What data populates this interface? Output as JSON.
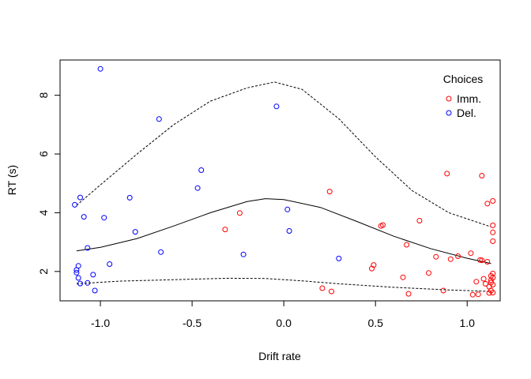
{
  "chart_data": {
    "type": "scatter",
    "title": "",
    "xlabel": "Drift rate",
    "ylabel": "RT (s)",
    "xlim": [
      -1.22,
      1.18
    ],
    "ylim": [
      1.0,
      9.2
    ],
    "x_ticks": [
      -1.0,
      -0.5,
      0.0,
      0.5,
      1.0
    ],
    "x_tick_labels": [
      "-1.0",
      "-0.5",
      "0.0",
      "0.5",
      "1.0"
    ],
    "y_ticks": [
      2,
      4,
      6,
      8
    ],
    "y_tick_labels": [
      "2",
      "4",
      "6",
      "8"
    ],
    "grid": false,
    "legend": {
      "title": "Choices",
      "position": "top-right",
      "entries": [
        {
          "label": "Imm.",
          "color": "#ff0000"
        },
        {
          "label": "Del.",
          "color": "#0000ff"
        }
      ]
    },
    "series": [
      {
        "name": "Imm.",
        "color": "#ff0000",
        "points": [
          [
            -0.32,
            3.43
          ],
          [
            -0.24,
            3.99
          ],
          [
            0.21,
            1.43
          ],
          [
            0.25,
            4.72
          ],
          [
            0.26,
            1.32
          ],
          [
            0.48,
            2.1
          ],
          [
            0.49,
            2.22
          ],
          [
            0.53,
            3.55
          ],
          [
            0.54,
            3.58
          ],
          [
            0.65,
            1.8
          ],
          [
            0.67,
            2.91
          ],
          [
            0.68,
            1.24
          ],
          [
            0.74,
            3.73
          ],
          [
            0.79,
            1.95
          ],
          [
            0.83,
            2.5
          ],
          [
            0.87,
            1.35
          ],
          [
            0.89,
            5.33
          ],
          [
            0.91,
            2.42
          ],
          [
            0.95,
            2.52
          ],
          [
            1.02,
            2.62
          ],
          [
            1.03,
            1.21
          ],
          [
            1.05,
            1.65
          ],
          [
            1.06,
            1.22
          ],
          [
            1.07,
            2.39
          ],
          [
            1.08,
            2.38
          ],
          [
            1.08,
            5.26
          ],
          [
            1.09,
            1.75
          ],
          [
            1.1,
            1.58
          ],
          [
            1.11,
            4.31
          ],
          [
            1.11,
            2.33
          ],
          [
            1.12,
            1.27
          ],
          [
            1.12,
            1.48
          ],
          [
            1.13,
            1.7
          ],
          [
            1.13,
            1.62
          ],
          [
            1.13,
            1.35
          ],
          [
            1.13,
            1.85
          ],
          [
            1.14,
            4.4
          ],
          [
            1.14,
            1.55
          ],
          [
            1.14,
            3.57
          ],
          [
            1.14,
            3.03
          ],
          [
            1.14,
            3.33
          ],
          [
            1.14,
            1.93
          ],
          [
            1.14,
            1.28
          ],
          [
            1.14,
            1.79
          ]
        ]
      },
      {
        "name": "Del.",
        "color": "#0000ff",
        "points": [
          [
            -1.14,
            4.27
          ],
          [
            -1.13,
            1.96
          ],
          [
            -1.13,
            2.05
          ],
          [
            -1.12,
            1.78
          ],
          [
            -1.12,
            2.19
          ],
          [
            -1.11,
            1.59
          ],
          [
            -1.11,
            4.52
          ],
          [
            -1.09,
            3.86
          ],
          [
            -1.07,
            1.61
          ],
          [
            -1.07,
            2.8
          ],
          [
            -1.04,
            1.89
          ],
          [
            -1.03,
            1.35
          ],
          [
            -1.0,
            8.9
          ],
          [
            -0.98,
            3.83
          ],
          [
            -0.95,
            2.25
          ],
          [
            -0.84,
            4.51
          ],
          [
            -0.81,
            3.35
          ],
          [
            -0.68,
            7.19
          ],
          [
            -0.67,
            2.66
          ],
          [
            -0.47,
            4.84
          ],
          [
            -0.45,
            5.45
          ],
          [
            -0.22,
            2.58
          ],
          [
            -0.04,
            7.62
          ],
          [
            0.02,
            4.11
          ],
          [
            0.03,
            3.38
          ],
          [
            0.3,
            2.44
          ]
        ]
      }
    ],
    "curves": [
      {
        "name": "upper",
        "style": "dashed",
        "points": [
          [
            -1.13,
            4.25
          ],
          [
            -1.0,
            4.95
          ],
          [
            -0.8,
            6.0
          ],
          [
            -0.6,
            7.0
          ],
          [
            -0.4,
            7.8
          ],
          [
            -0.2,
            8.25
          ],
          [
            -0.05,
            8.45
          ],
          [
            0.1,
            8.2
          ],
          [
            0.3,
            7.2
          ],
          [
            0.5,
            5.9
          ],
          [
            0.7,
            4.75
          ],
          [
            0.9,
            4.0
          ],
          [
            1.13,
            3.52
          ]
        ]
      },
      {
        "name": "mean",
        "style": "solid",
        "points": [
          [
            -1.13,
            2.7
          ],
          [
            -1.0,
            2.82
          ],
          [
            -0.8,
            3.12
          ],
          [
            -0.6,
            3.55
          ],
          [
            -0.4,
            4.0
          ],
          [
            -0.2,
            4.38
          ],
          [
            -0.1,
            4.48
          ],
          [
            0.0,
            4.45
          ],
          [
            0.2,
            4.18
          ],
          [
            0.4,
            3.7
          ],
          [
            0.6,
            3.2
          ],
          [
            0.8,
            2.78
          ],
          [
            1.0,
            2.45
          ],
          [
            1.13,
            2.27
          ]
        ]
      },
      {
        "name": "lower",
        "style": "dashed",
        "points": [
          [
            -1.13,
            1.58
          ],
          [
            -0.9,
            1.67
          ],
          [
            -0.6,
            1.72
          ],
          [
            -0.3,
            1.77
          ],
          [
            -0.1,
            1.76
          ],
          [
            0.1,
            1.68
          ],
          [
            0.3,
            1.58
          ],
          [
            0.6,
            1.46
          ],
          [
            0.9,
            1.37
          ],
          [
            1.13,
            1.32
          ]
        ]
      }
    ]
  }
}
